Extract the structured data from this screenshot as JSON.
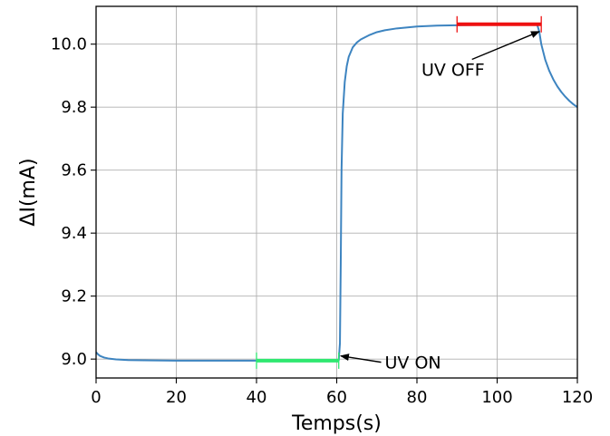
{
  "chart_data": {
    "type": "line",
    "xlabel": "Temps(s)",
    "ylabel": "ΔI(mA)",
    "xlim": [
      0,
      120
    ],
    "ylim": [
      8.94,
      10.12
    ],
    "xticks": [
      0,
      20,
      40,
      60,
      80,
      100,
      120
    ],
    "yticks": [
      9.0,
      9.2,
      9.4,
      9.6,
      9.8,
      10.0
    ],
    "xtick_labels": [
      "0",
      "20",
      "40",
      "60",
      "80",
      "100",
      "120"
    ],
    "ytick_labels": [
      "9.0",
      "9.2",
      "9.4",
      "9.6",
      "9.8",
      "10.0"
    ],
    "grid": true,
    "series": [
      {
        "color": "#3d84c0",
        "x": [
          0,
          0.5,
          1,
          2,
          3,
          5,
          8,
          12,
          20,
          30,
          40,
          50,
          58,
          60,
          60.5,
          60.8,
          61,
          61.2,
          61.5,
          62,
          62.5,
          63,
          64,
          65,
          66,
          68,
          70,
          72,
          75,
          80,
          85,
          90,
          95,
          100,
          105,
          110,
          110.5,
          111,
          112,
          113,
          114,
          115,
          116,
          117,
          118,
          119,
          120
        ],
        "y": [
          9.022,
          9.015,
          9.01,
          9.005,
          9.002,
          8.999,
          8.997,
          8.996,
          8.995,
          8.995,
          8.995,
          8.995,
          8.995,
          8.995,
          8.996,
          9.05,
          9.3,
          9.6,
          9.78,
          9.88,
          9.93,
          9.96,
          9.99,
          10.005,
          10.015,
          10.028,
          10.038,
          10.044,
          10.05,
          10.056,
          10.059,
          10.06,
          10.061,
          10.061,
          10.061,
          10.061,
          10.04,
          10.0,
          9.95,
          9.915,
          9.888,
          9.866,
          9.848,
          9.833,
          9.82,
          9.809,
          9.8
        ]
      },
      {
        "color": "#2ee870",
        "x": [
          40,
          60.5
        ],
        "y": [
          8.995,
          8.995
        ]
      },
      {
        "color": "#ee1111",
        "x": [
          90,
          111
        ],
        "y": [
          10.063,
          10.063
        ]
      }
    ],
    "annotations": [
      {
        "text": "UV ON",
        "xy": [
          61,
          9.01
        ],
        "xytext": [
          79,
          8.99
        ]
      },
      {
        "text": "UV OFF",
        "xy": [
          110.5,
          10.04
        ],
        "xytext": [
          89,
          9.92
        ]
      }
    ]
  }
}
